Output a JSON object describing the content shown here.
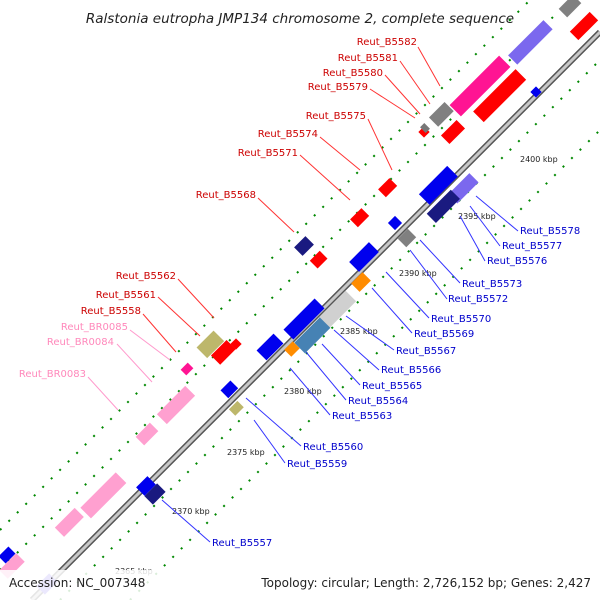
{
  "title": "Ralstonia eutropha JMP134 chromosome 2, complete sequence",
  "footer": {
    "accession": "Accession: NC_007348",
    "summary": "Topology: circular; Length: 2,726,152 bp; Genes: 2,427"
  },
  "scale_labels": [
    "2365 kbp",
    "2370 kbp",
    "2375 kbp",
    "2380 kbp",
    "2385 kbp",
    "2390 kbp",
    "2395 kbp",
    "2400 kbp"
  ],
  "gene_labels": {
    "red": [
      "Reut_B5582",
      "Reut_B5581",
      "Reut_B5580",
      "Reut_B5579",
      "Reut_B5575",
      "Reut_B5574",
      "Reut_B5571",
      "Reut_B5568",
      "Reut_B5562",
      "Reut_B5561",
      "Reut_B5558"
    ],
    "pink": [
      "Reut_BR0085",
      "Reut_BR0084",
      "Reut_BR0083"
    ],
    "blue": [
      "Reut_B5578",
      "Reut_B5577",
      "Reut_B5576",
      "Reut_B5573",
      "Reut_B5572",
      "Reut_B5570",
      "Reut_B5569",
      "Reut_B5567",
      "Reut_B5566",
      "Reut_B5565",
      "Reut_B5564",
      "Reut_B5563",
      "Reut_B5560",
      "Reut_B5559",
      "Reut_B5557"
    ]
  },
  "colors": {
    "red_gene": "#ff0000",
    "pink_rna": "#ffa0d0",
    "blue_gene": "#0000ee",
    "navy_gene": "#1a1a80",
    "purple_gene": "#7b68ee",
    "grey_gene": "#808080",
    "magenta_gene": "#ff1493",
    "khaki_gene": "#bdb76b",
    "orange_gene": "#ff8c00",
    "steelblue_gene": "#4682b4",
    "silver_gene": "#d0d0d0",
    "red_label": "#cc0000",
    "pink_label": "#ff88bb",
    "blue_label": "#0000cc",
    "tick": "#008800",
    "backbone": "#999999"
  }
}
